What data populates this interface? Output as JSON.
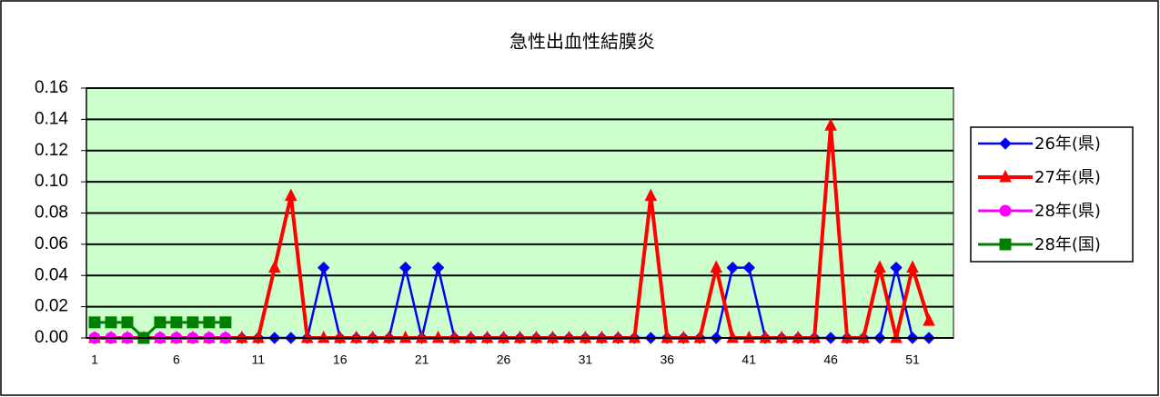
{
  "chart_data": {
    "type": "line",
    "title": "急性出血性結膜炎",
    "categories": [
      1,
      null,
      null,
      null,
      null,
      6,
      null,
      null,
      null,
      null,
      11,
      null,
      null,
      null,
      null,
      16,
      null,
      null,
      null,
      null,
      21,
      null,
      null,
      null,
      null,
      26,
      null,
      null,
      null,
      null,
      31,
      null,
      null,
      null,
      null,
      36,
      null,
      null,
      null,
      null,
      41,
      null,
      null,
      null,
      null,
      46,
      null,
      null,
      null,
      null,
      51,
      null
    ],
    "series": [
      {
        "name": "26年(県)",
        "color": "#0000ff",
        "marker": "diamond",
        "values": [
          0,
          0,
          0,
          0,
          0,
          0,
          0,
          0,
          0,
          0,
          0,
          0,
          0,
          0,
          0.045,
          0,
          0,
          0,
          0,
          0.045,
          0,
          0.045,
          0,
          0,
          0,
          0,
          0,
          0,
          0,
          0,
          0,
          0,
          0,
          0,
          0,
          0,
          0,
          0,
          0,
          0.045,
          0.045,
          0,
          0,
          0,
          0,
          0,
          0,
          0,
          0,
          0.045,
          0,
          0
        ]
      },
      {
        "name": "27年(県)",
        "color": "#ff0000",
        "marker": "triangle",
        "values": [
          0,
          0,
          0,
          0,
          0,
          0,
          0,
          0,
          0,
          0,
          0,
          0.045,
          0.091,
          0,
          0,
          0,
          0,
          0,
          0,
          0,
          0,
          0,
          0,
          0,
          0,
          0,
          0,
          0,
          0,
          0,
          0,
          0,
          0,
          0,
          0.091,
          0,
          0,
          0,
          0.045,
          0,
          0,
          0,
          0,
          0,
          0,
          0.136,
          0,
          0,
          0.045,
          0,
          0.045,
          0.011
        ]
      },
      {
        "name": "28年(県)",
        "color": "#ff00ff",
        "marker": "circle",
        "values": [
          0,
          0,
          0,
          0,
          0,
          0,
          0,
          0,
          0,
          null,
          null,
          null,
          null,
          null,
          null,
          null,
          null,
          null,
          null,
          null,
          null,
          null,
          null,
          null,
          null,
          null,
          null,
          null,
          null,
          null,
          null,
          null,
          null,
          null,
          null,
          null,
          null,
          null,
          null,
          null,
          null,
          null,
          null,
          null,
          null,
          null,
          null,
          null,
          null,
          null,
          null,
          null
        ]
      },
      {
        "name": "28年(国)",
        "color": "#008000",
        "marker": "square",
        "values": [
          0.01,
          0.01,
          0.01,
          0,
          0.01,
          0.01,
          0.01,
          0.01,
          0.01,
          null,
          null,
          null,
          null,
          null,
          null,
          null,
          null,
          null,
          null,
          null,
          null,
          null,
          null,
          null,
          null,
          null,
          null,
          null,
          null,
          null,
          null,
          null,
          null,
          null,
          null,
          null,
          null,
          null,
          null,
          null,
          null,
          null,
          null,
          null,
          null,
          null,
          null,
          null,
          null,
          null,
          null,
          null
        ]
      }
    ],
    "ylim": [
      0,
      0.16
    ],
    "yticks": [
      {
        "value": 0,
        "label": "0.00"
      },
      {
        "value": 0.02,
        "label": "0.02"
      },
      {
        "value": 0.04,
        "label": "0.04"
      },
      {
        "value": 0.06,
        "label": "0.06"
      },
      {
        "value": 0.08,
        "label": "0.08"
      },
      {
        "value": 0.1,
        "label": "0.10"
      },
      {
        "value": 0.12,
        "label": "0.12"
      },
      {
        "value": 0.14,
        "label": "0.14"
      },
      {
        "value": 0.16,
        "label": "0.16"
      }
    ],
    "grid": true,
    "plot_background": "#ccffcc",
    "legend": "right"
  }
}
